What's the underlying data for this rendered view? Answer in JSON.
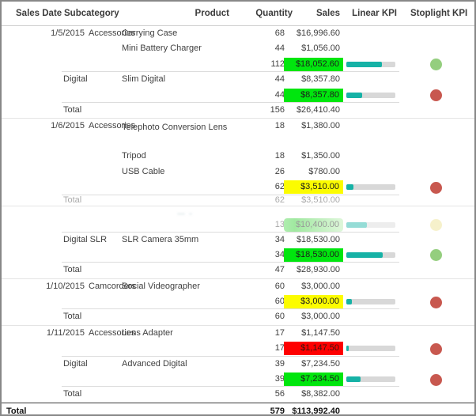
{
  "report": {
    "columns": {
      "sales_date": "Sales Date",
      "subcategory": "Subcategory",
      "product": "Product",
      "quantity": "Quantity",
      "sales": "Sales",
      "linear_kpi": "Linear KPI",
      "stoplight_kpi": "Stoplight KPI"
    },
    "rows": [
      {
        "type": "detail",
        "date": "1/5/2015",
        "subcategory": "Accessories",
        "indent": true,
        "product": "Carrying Case",
        "quantity": "68",
        "sales": "$16,996.60"
      },
      {
        "type": "detail",
        "product": "Mini Battery Charger",
        "quantity": "44",
        "sales": "$1,056.00"
      },
      {
        "type": "subtotal",
        "quantity": "112",
        "sales": "$18,052.60",
        "highlight": "green",
        "bar_pct": 72,
        "dot": "green",
        "sep": "partial"
      },
      {
        "type": "detail",
        "subcategory": "Digital",
        "product": "Slim Digital",
        "quantity": "44",
        "sales": "$8,357.80"
      },
      {
        "type": "subtotal",
        "quantity": "44",
        "sales": "$8,357.80",
        "highlight": "green",
        "bar_pct": 33,
        "dot": "red",
        "sep": "partial"
      },
      {
        "type": "group_total",
        "label": "Total",
        "quantity": "156",
        "sales": "$26,410.40",
        "sep": "full"
      },
      {
        "type": "detail",
        "date": "1/6/2015",
        "subcategory": "Accessories",
        "indent": true,
        "product": "Telephoto Conversion Lens",
        "tall": true,
        "quantity": "18",
        "sales": "$1,380.00"
      },
      {
        "type": "detail",
        "product": "Tripod",
        "quantity": "18",
        "sales": "$1,350.00"
      },
      {
        "type": "detail",
        "product": "USB Cable",
        "quantity": "26",
        "sales": "$780.00"
      },
      {
        "type": "subtotal",
        "quantity": "62",
        "sales": "$3,510.00",
        "highlight": "yellow",
        "bar_pct": 14,
        "dot": "red",
        "sep": "partial"
      },
      {
        "type": "group_total",
        "label": "Total",
        "quantity": "62",
        "sales": "$3,510.00",
        "faded": true,
        "h": 13,
        "sep": "full"
      },
      {
        "type": "blank",
        "faded": true,
        "h": 14
      },
      {
        "type": "subtotal",
        "quantity": "13",
        "sales": "$10,400.00",
        "highlight": "fadegreen",
        "bar_pct": 42,
        "dot": "yellow",
        "faded": true,
        "h": 19,
        "sep": "partial"
      },
      {
        "type": "detail",
        "subcategory": "Digital SLR",
        "product": "SLR Camera 35mm",
        "quantity": "34",
        "sales": "$18,530.00"
      },
      {
        "type": "subtotal",
        "quantity": "34",
        "sales": "$18,530.00",
        "highlight": "green",
        "bar_pct": 74,
        "dot": "green",
        "sep": "partial"
      },
      {
        "type": "group_total",
        "label": "Total",
        "quantity": "47",
        "sales": "$28,930.00",
        "sep": "full"
      },
      {
        "type": "detail",
        "date": "1/10/2015",
        "subcategory": "Camcorders",
        "indent": true,
        "product": "Social Videographer",
        "quantity": "60",
        "sales": "$3,000.00"
      },
      {
        "type": "subtotal",
        "quantity": "60",
        "sales": "$3,000.00",
        "highlight": "yellow",
        "bar_pct": 12,
        "dot": "red",
        "sep": "partial"
      },
      {
        "type": "group_total",
        "label": "Total",
        "quantity": "60",
        "sales": "$3,000.00",
        "sep": "full"
      },
      {
        "type": "detail",
        "date": "1/11/2015",
        "subcategory": "Accessories",
        "indent": true,
        "product": "Lens Adapter",
        "quantity": "17",
        "sales": "$1,147.50"
      },
      {
        "type": "subtotal",
        "quantity": "17",
        "sales": "$1,147.50",
        "highlight": "red",
        "bar_pct": 5,
        "dot": "red",
        "sep": "partial"
      },
      {
        "type": "detail",
        "subcategory": "Digital",
        "product": "Advanced Digital",
        "quantity": "39",
        "sales": "$7,234.50"
      },
      {
        "type": "subtotal",
        "quantity": "39",
        "sales": "$7,234.50",
        "highlight": "green",
        "bar_pct": 29,
        "dot": "red",
        "sep": "partial"
      },
      {
        "type": "group_total",
        "label": "Total",
        "quantity": "56",
        "sales": "$8,382.00",
        "sep": "dark"
      },
      {
        "type": "grand_total",
        "label": "Total",
        "quantity": "579",
        "sales": "$113,992.40"
      }
    ],
    "colors": {
      "green_cell": "#00e60e",
      "yellow_cell": "#fcfc00",
      "red_cell": "#fe0000",
      "faded_green_cell": "#2fce2f",
      "kpi_bar": "#16b2a6",
      "kpi_bar_track": "#d8d8d8",
      "stoplight_green": "#94ce7e",
      "stoplight_red": "#c8584f",
      "stoplight_yellow": "#ebe18c"
    }
  }
}
